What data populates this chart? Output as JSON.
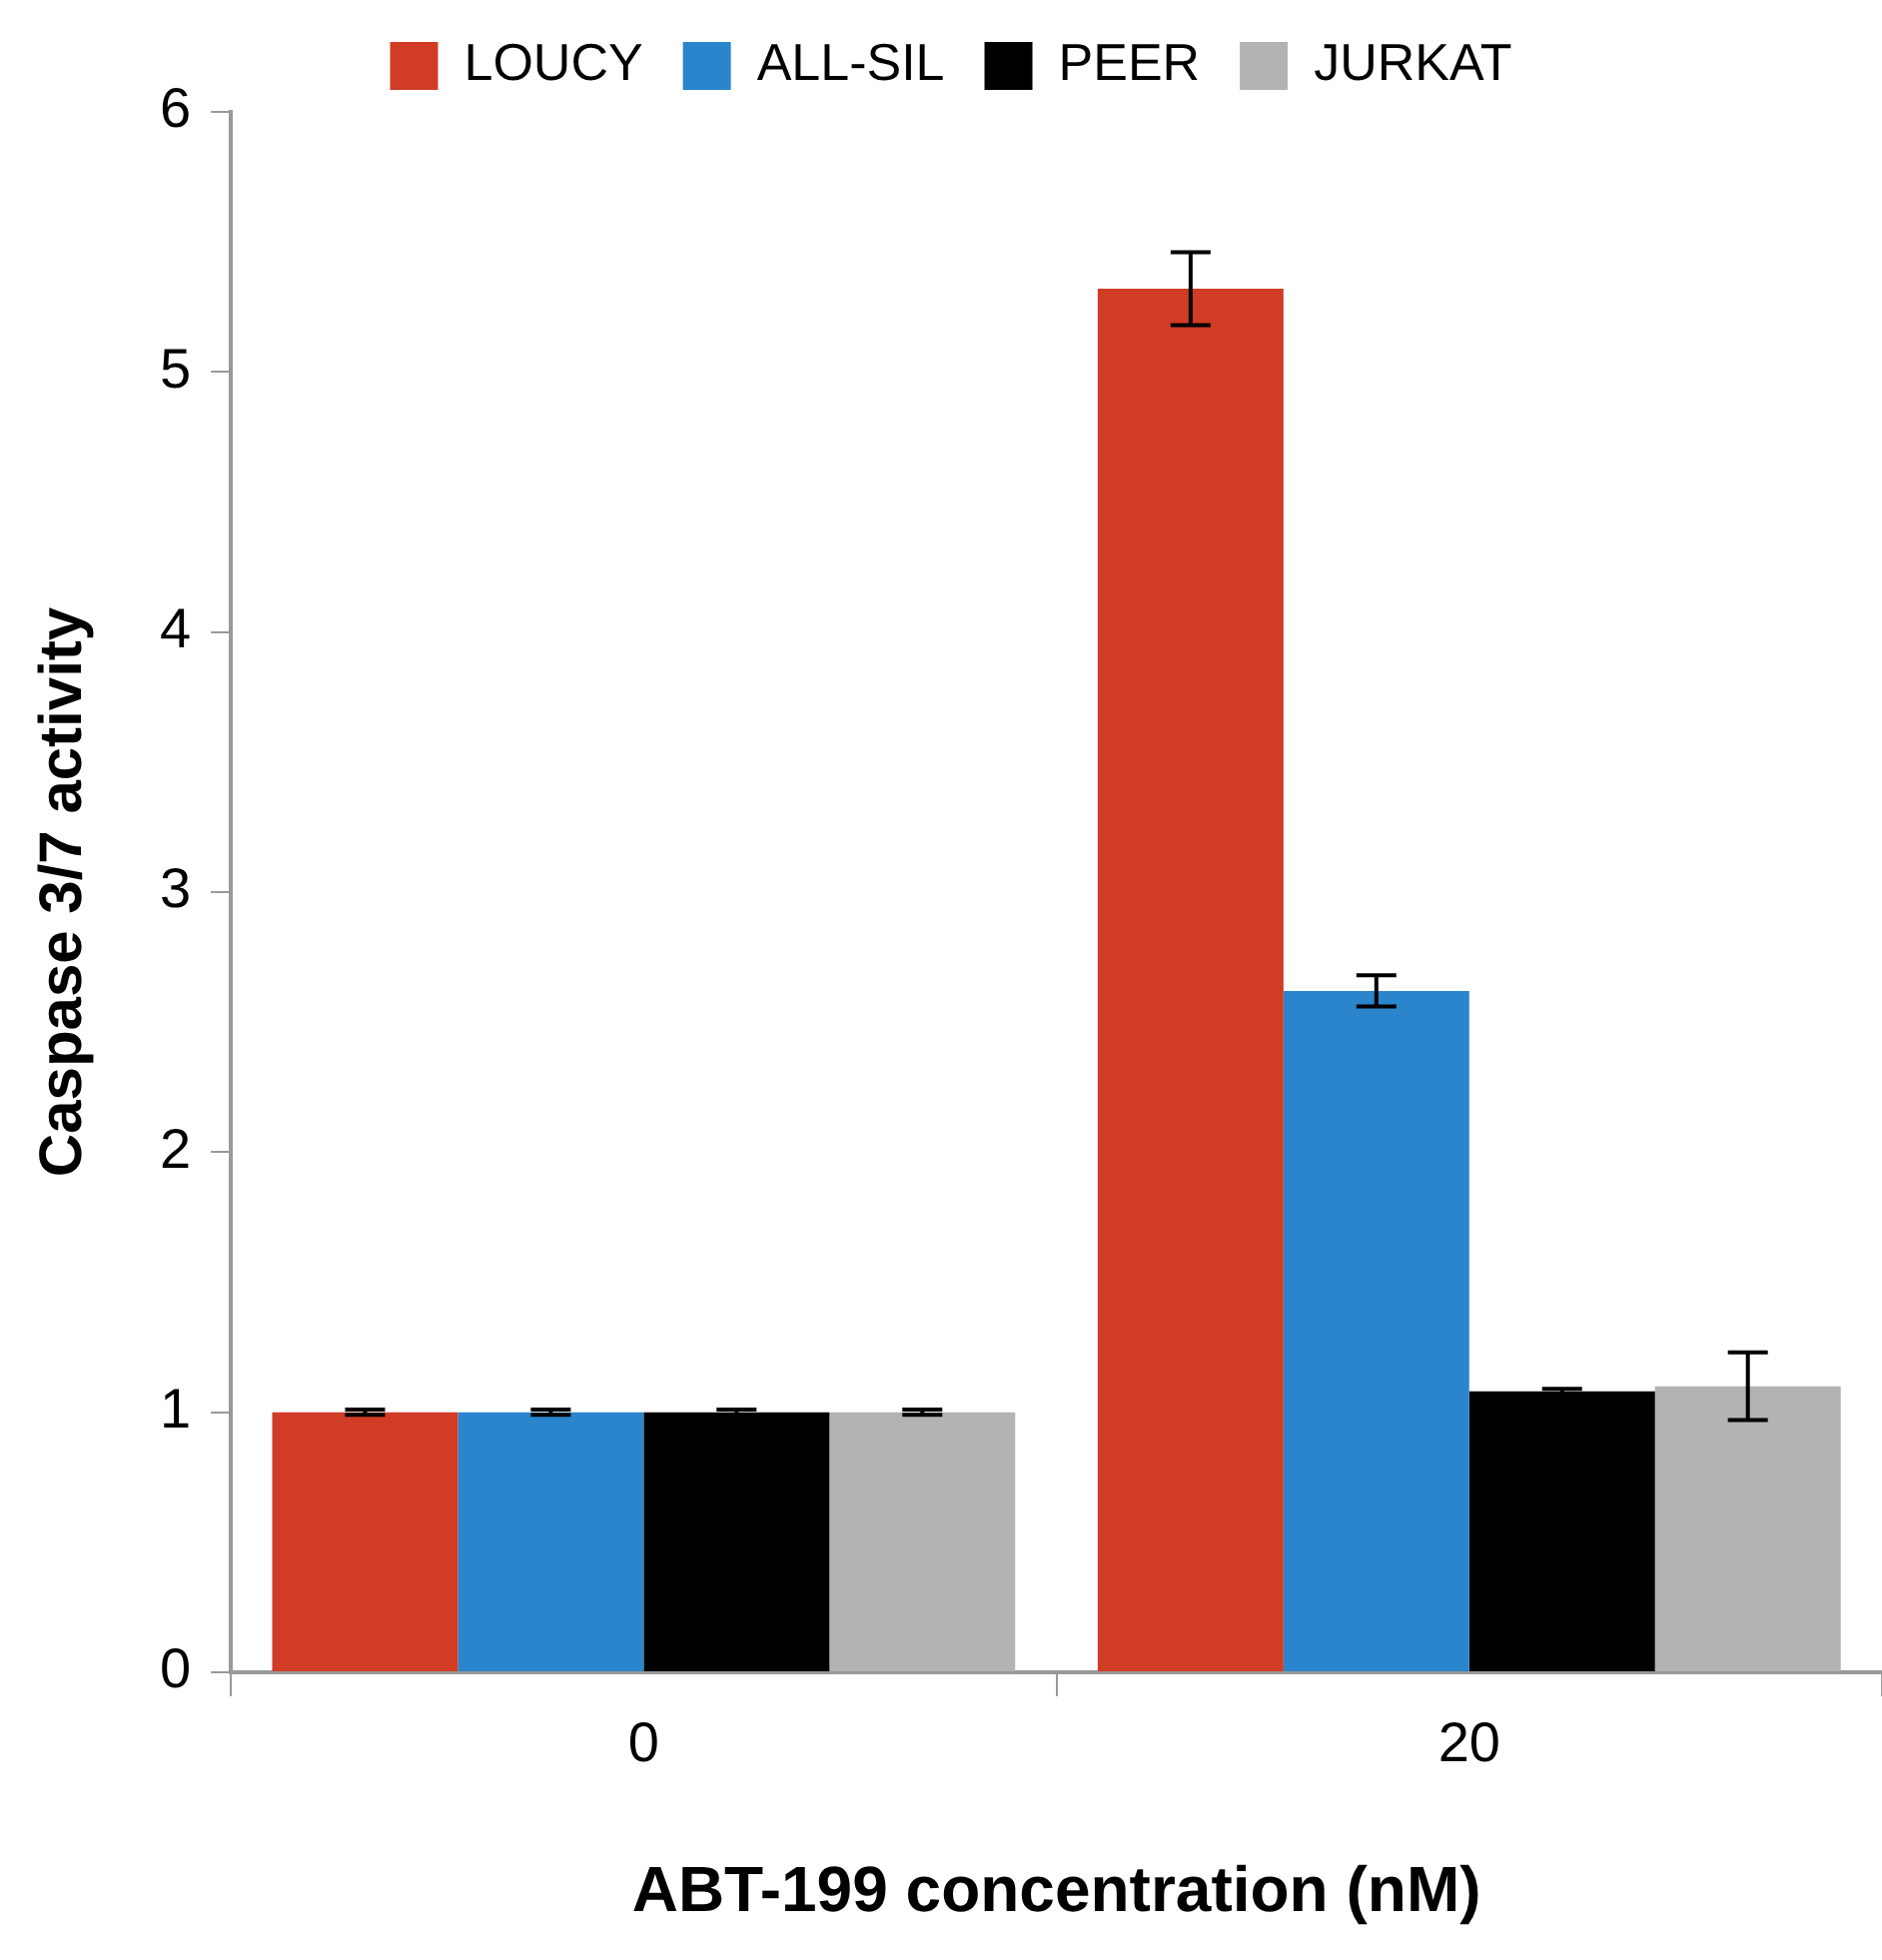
{
  "chart_data": {
    "type": "bar",
    "xlabel": "ABT-199 concentration (nM)",
    "ylabel": "Caspase 3/7 activity",
    "categories": [
      "0",
      "20"
    ],
    "series": [
      {
        "name": "LOUCY",
        "color": "#d03c25",
        "values": [
          1.0,
          5.32
        ],
        "errors": [
          0.01,
          0.14
        ]
      },
      {
        "name": "ALL-SIL",
        "color": "#2a85cc",
        "values": [
          1.0,
          2.62
        ],
        "errors": [
          0.01,
          0.06
        ]
      },
      {
        "name": "PEER",
        "color": "#000000",
        "values": [
          1.0,
          1.08
        ],
        "errors": [
          0.01,
          0.01
        ]
      },
      {
        "name": "JURKAT",
        "color": "#b3b3b3",
        "values": [
          1.0,
          1.1
        ],
        "errors": [
          0.01,
          0.13
        ]
      }
    ],
    "ylim": [
      0,
      6
    ],
    "yticks": [
      0,
      1,
      2,
      3,
      4,
      5,
      6
    ],
    "grid": false,
    "legend": "top"
  }
}
